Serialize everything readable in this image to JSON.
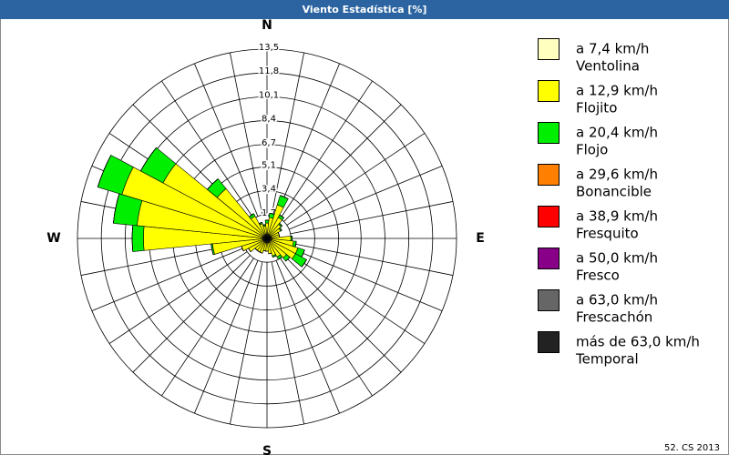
{
  "chart_data": {
    "type": "windrose",
    "title": "Viento Estadística [%]",
    "footer": "52. CS 2013",
    "categories": [
      "N",
      null,
      null,
      null,
      null,
      null,
      null,
      null,
      "E",
      null,
      null,
      null,
      null,
      null,
      null,
      null,
      "S",
      null,
      null,
      null,
      null,
      null,
      null,
      null,
      "W",
      null,
      null,
      null,
      null,
      null,
      null,
      null
    ],
    "rlim": [
      0,
      13.5
    ],
    "rticks": [
      {
        "value": 1.7,
        "label": "1,7"
      },
      {
        "value": 3.4,
        "label": "3,4"
      },
      {
        "value": 5.1,
        "label": "5,1"
      },
      {
        "value": 6.7,
        "label": "6,7"
      },
      {
        "value": 8.4,
        "label": "8,4"
      },
      {
        "value": 10.1,
        "label": "10,1"
      },
      {
        "value": 11.8,
        "label": "11,8"
      },
      {
        "value": 13.5,
        "label": "13,5"
      }
    ],
    "series": [
      {
        "name": "a 7,4 km/h",
        "description": "Ventolina",
        "color": "#ffffc0",
        "values": [
          0.3,
          0.3,
          0.3,
          0.3,
          0.3,
          0.3,
          0.3,
          0.3,
          0.3,
          0.3,
          0.3,
          0.3,
          0.3,
          0.3,
          0.3,
          0.3,
          0.3,
          0.3,
          0.3,
          0.3,
          0.3,
          0.3,
          0.3,
          0.3,
          0.3,
          0.3,
          0.3,
          0.3,
          0.3,
          0.3,
          0.3,
          0.3
        ]
      },
      {
        "name": "a 12,9 km/h",
        "description": "Flojito",
        "color": "#ffff00",
        "values": [
          0.8,
          1.2,
          2.2,
          1.4,
          1.0,
          0.8,
          0.6,
          0.6,
          1.4,
          1.6,
          2.0,
          2.0,
          1.5,
          1.2,
          1.0,
          0.8,
          0.6,
          0.6,
          0.8,
          0.8,
          0.8,
          1.2,
          1.6,
          3.6,
          8.5,
          9.0,
          10.5,
          8.1,
          4.3,
          1.5,
          0.8,
          0.6
        ]
      },
      {
        "name": "a 20,4 km/h",
        "description": "Flojo",
        "color": "#00ee00",
        "values": [
          0.2,
          0.3,
          0.7,
          0.2,
          0.1,
          0.1,
          0,
          0,
          0.1,
          0.2,
          0.5,
          0.9,
          0.3,
          0.2,
          0.1,
          0,
          0,
          0,
          0,
          0,
          0,
          0,
          0,
          0.1,
          0.8,
          1.7,
          1.8,
          1.8,
          0.9,
          0.2,
          0.1,
          0.1
        ]
      },
      {
        "name": "a 29,6 km/h",
        "description": "Bonancible",
        "color": "#ff8000",
        "values": [
          0,
          0,
          0,
          0,
          0,
          0,
          0,
          0,
          0,
          0,
          0,
          0,
          0,
          0,
          0,
          0,
          0,
          0,
          0,
          0,
          0,
          0,
          0,
          0,
          0,
          0,
          0,
          0,
          0,
          0,
          0,
          0
        ]
      },
      {
        "name": "a 38,9 km/h",
        "description": "Fresquito",
        "color": "#ff0000",
        "values": [
          0,
          0,
          0,
          0,
          0,
          0,
          0,
          0,
          0,
          0,
          0,
          0,
          0,
          0,
          0,
          0,
          0,
          0,
          0,
          0,
          0,
          0,
          0,
          0,
          0,
          0,
          0,
          0,
          0,
          0,
          0,
          0
        ]
      },
      {
        "name": "a 50,0 km/h",
        "description": "Fresco",
        "color": "#880088",
        "values": [
          0,
          0,
          0,
          0,
          0,
          0,
          0,
          0,
          0,
          0,
          0,
          0,
          0,
          0,
          0,
          0,
          0,
          0,
          0,
          0,
          0,
          0,
          0,
          0,
          0,
          0,
          0,
          0,
          0,
          0,
          0,
          0
        ]
      },
      {
        "name": "a 63,0 km/h",
        "description": "Frescachón",
        "color": "#666666",
        "values": [
          0,
          0,
          0,
          0,
          0,
          0,
          0,
          0,
          0,
          0,
          0,
          0,
          0,
          0,
          0,
          0,
          0,
          0,
          0,
          0,
          0,
          0,
          0,
          0,
          0,
          0,
          0,
          0,
          0,
          0,
          0,
          0
        ]
      },
      {
        "name": "más de 63,0 km/h",
        "description": "Temporal",
        "color": "#222222",
        "values": [
          0,
          0,
          0,
          0,
          0,
          0,
          0,
          0,
          0,
          0,
          0,
          0,
          0,
          0,
          0,
          0,
          0,
          0,
          0,
          0,
          0,
          0,
          0,
          0,
          0,
          0,
          0,
          0,
          0,
          0,
          0,
          0
        ]
      }
    ]
  }
}
